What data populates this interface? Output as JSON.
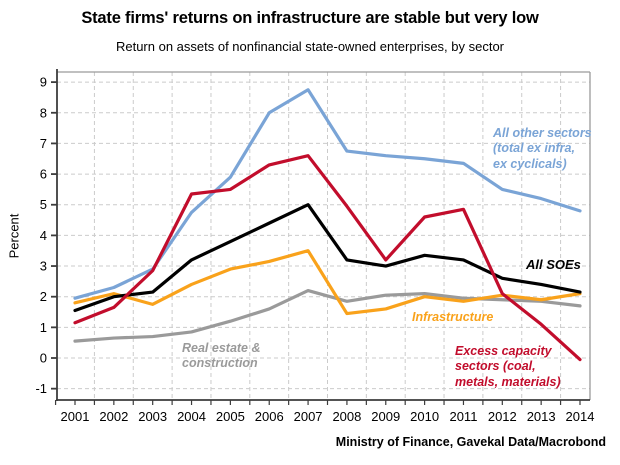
{
  "header": {
    "title": "State firms' returns on infrastructure are stable but very low",
    "subtitle": "Return on assets of nonfinancial state-owned enterprises, by sector"
  },
  "footer": {
    "source": "Ministry of Finance, Gavekal Data/Macrobond"
  },
  "annotations": {
    "other_sectors": "All other sectors\n(total ex infra,\nex cyclicals)",
    "all_soes": "All SOEs",
    "infrastructure": "Infrastructure",
    "excess_capacity": "Excess capacity\nsectors (coal,\nmetals, materials)",
    "real_estate": "Real estate &\nconstruction"
  },
  "chart_data": {
    "type": "line",
    "title": "State firms' returns on infrastructure are stable but very low",
    "subtitle": "Return on assets of nonfinancial state-owned enterprises, by sector",
    "xlabel": "",
    "ylabel": "Percent",
    "ylim": [
      -1,
      9
    ],
    "yticks": [
      -1,
      0,
      1,
      2,
      3,
      4,
      5,
      6,
      7,
      8,
      9
    ],
    "grid": true,
    "grid_color": "#cbcbcb",
    "axis_color": "#3c3c3c",
    "border_color": "#9a9a9a",
    "x": [
      2001,
      2002,
      2003,
      2004,
      2005,
      2006,
      2007,
      2008,
      2009,
      2010,
      2011,
      2012,
      2013,
      2014
    ],
    "series": [
      {
        "name": "Real estate & construction",
        "color": "#9A9A9A",
        "values": [
          0.55,
          0.65,
          0.7,
          0.85,
          1.2,
          1.6,
          2.2,
          1.85,
          2.05,
          2.1,
          1.95,
          1.9,
          1.85,
          1.7
        ]
      },
      {
        "name": "All other sectors (total ex infra, ex cyclicals)",
        "color": "#7AA4D6",
        "values": [
          1.95,
          2.3,
          2.9,
          4.75,
          5.9,
          8.0,
          8.75,
          6.75,
          6.6,
          6.5,
          6.35,
          5.5,
          5.2,
          4.8
        ]
      },
      {
        "name": "Infrastructure",
        "color": "#F9A21B",
        "values": [
          1.8,
          2.1,
          1.75,
          2.4,
          2.9,
          3.15,
          3.5,
          1.45,
          1.6,
          2.0,
          1.85,
          2.05,
          1.9,
          2.1
        ]
      },
      {
        "name": "All SOEs",
        "color": "#000000",
        "values": [
          1.55,
          2.0,
          2.15,
          3.2,
          3.8,
          4.4,
          5.0,
          3.2,
          3.0,
          3.35,
          3.2,
          2.6,
          2.4,
          2.15
        ]
      },
      {
        "name": "Excess capacity sectors (coal, metals, materials)",
        "color": "#C20D2C",
        "values": [
          1.15,
          1.65,
          2.85,
          5.35,
          5.5,
          6.3,
          6.6,
          4.95,
          3.2,
          4.6,
          4.85,
          2.1,
          1.1,
          -0.05
        ]
      }
    ]
  }
}
